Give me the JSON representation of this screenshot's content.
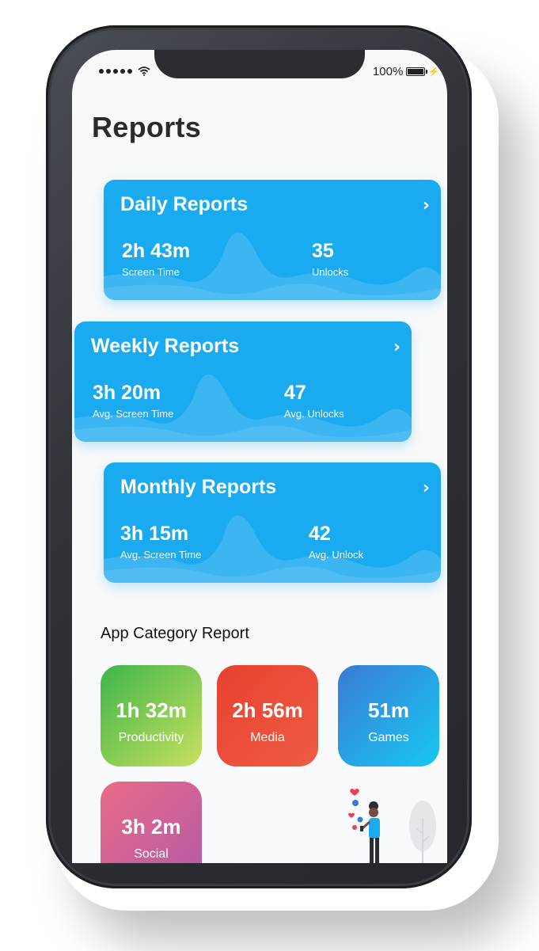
{
  "status": {
    "battery_percent": "100%"
  },
  "page": {
    "title": "Reports"
  },
  "reports": {
    "daily": {
      "title": "Daily Reports",
      "stat1_value": "2h 43m",
      "stat1_label": "Screen Time",
      "stat2_value": "35",
      "stat2_label": "Unlocks"
    },
    "weekly": {
      "title": "Weekly Reports",
      "stat1_value": "3h 20m",
      "stat1_label": "Avg. Screen Time",
      "stat2_value": "47",
      "stat2_label": "Avg. Unlocks"
    },
    "monthly": {
      "title": "Monthly Reports",
      "stat1_value": "3h 15m",
      "stat1_label": "Avg. Screen Time",
      "stat2_value": "42",
      "stat2_label": "Avg. Unlock"
    }
  },
  "categories": {
    "title": "App Category Report",
    "items": [
      {
        "value": "1h 32m",
        "label": "Productivity",
        "colors": [
          "#3fb54a",
          "#c8e05e"
        ]
      },
      {
        "value": "2h 56m",
        "label": "Media",
        "colors": [
          "#e8412f",
          "#ee5c45"
        ]
      },
      {
        "value": "51m",
        "label": "Games",
        "colors": [
          "#3a7bd5",
          "#18c8f2"
        ]
      },
      {
        "value": "3h 2m",
        "label": "Social",
        "colors": [
          "#ea6b86",
          "#b45aa8"
        ]
      }
    ]
  },
  "colors": {
    "card_blue": "#1aaaf0",
    "phone_frame": "#2f3237",
    "screen_bg": "#f8f9fa"
  },
  "icons": {
    "arrow": "chevron-right-icon",
    "wifi": "wifi-icon",
    "battery": "battery-icon"
  }
}
